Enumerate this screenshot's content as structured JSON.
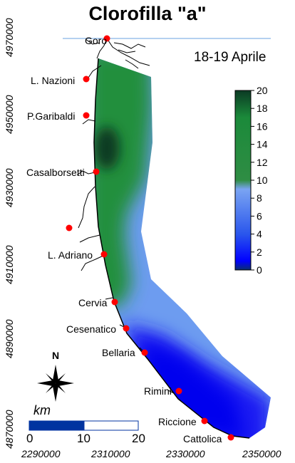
{
  "title": "Clorofilla \"a\"",
  "date": "18-19  Aprile",
  "colorbar": {
    "ticks": [
      0,
      2,
      4,
      6,
      8,
      10,
      12,
      14,
      16,
      18,
      20
    ],
    "colors": [
      "#0a2f6e",
      "#0000ff",
      "#3e72e8",
      "#6496ee",
      "#1f8e3c",
      "#0b3a24"
    ]
  },
  "stations": [
    {
      "label": "Goro"
    },
    {
      "label": "L. Nazioni"
    },
    {
      "label": "P.Garibaldi"
    },
    {
      "label": "Casalborsetti"
    },
    {
      "label": ""
    },
    {
      "label": "L. Adriano"
    },
    {
      "label": "Cervia"
    },
    {
      "label": "Cesenatico"
    },
    {
      "label": "Bellaria"
    },
    {
      "label": "Rimini"
    },
    {
      "label": "Riccione"
    },
    {
      "label": "Cattolica"
    }
  ],
  "x_axis": {
    "ticks": [
      "2290000",
      "2310000",
      "2330000",
      "2350000"
    ]
  },
  "y_axis": {
    "ticks": [
      "4970000",
      "4950000",
      "4930000",
      "4910000",
      "4890000",
      "4870000"
    ]
  },
  "north_label": "N",
  "scalebar": {
    "unit": "km",
    "ticks": [
      "0",
      "10",
      "20"
    ]
  },
  "colors": {
    "station": "#ff0000",
    "coast": "#000000",
    "green": "#218f3e",
    "blue": "#6d9cf0",
    "deep_blue": "#0000ee"
  }
}
